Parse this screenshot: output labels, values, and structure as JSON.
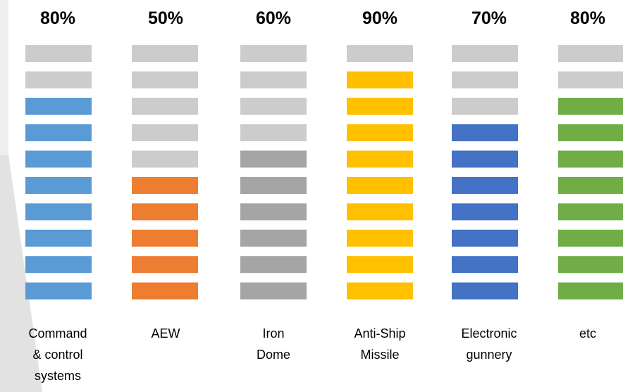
{
  "chart_data": {
    "type": "bar",
    "segments_per_column": 10,
    "empty_color": "#cccccc",
    "columns": [
      {
        "label": [
          "Command",
          "& control",
          "systems"
        ],
        "percent_label": "80%",
        "value": 80,
        "color": "#5b9bd5"
      },
      {
        "label": [
          "AEW"
        ],
        "percent_label": "50%",
        "value": 50,
        "color": "#ed7d31"
      },
      {
        "label": [
          "Iron",
          "Dome"
        ],
        "percent_label": "60%",
        "value": 60,
        "color": "#a5a5a5"
      },
      {
        "label": [
          "Anti-Ship",
          "Missile"
        ],
        "percent_label": "90%",
        "value": 90,
        "color": "#ffc000"
      },
      {
        "label": [
          "Electronic",
          "gunnery"
        ],
        "percent_label": "70%",
        "value": 70,
        "color": "#4472c4"
      },
      {
        "label": [
          "etc"
        ],
        "percent_label": "80%",
        "value": 80,
        "color": "#70ad47"
      }
    ]
  }
}
